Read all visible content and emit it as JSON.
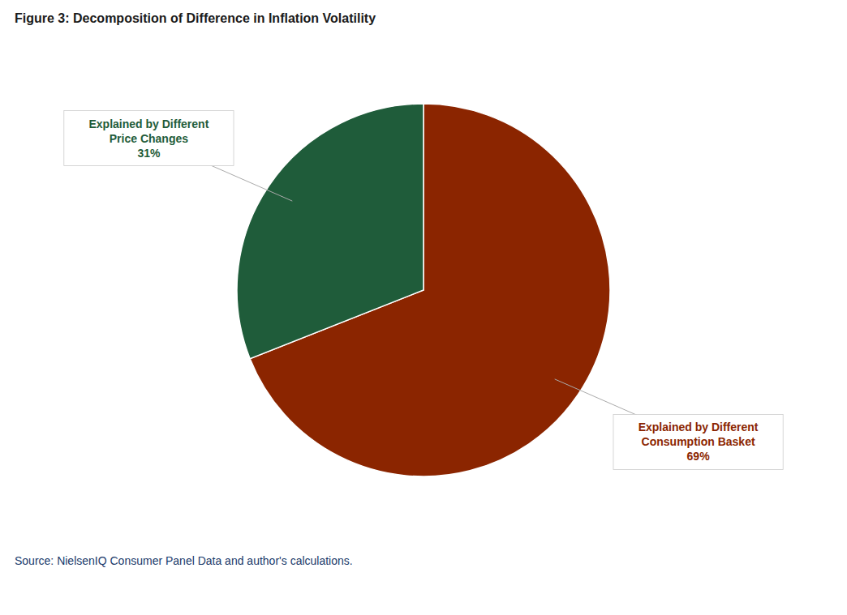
{
  "chart_data": {
    "type": "pie",
    "title": "Figure 3: Decomposition of Difference in Inflation Volatility",
    "values": [
      69,
      31
    ],
    "colors": [
      "#8B2500",
      "#1F5C3A"
    ],
    "annotations": [
      "Explained by Different\nConsumption Basket\n69%",
      "Explained by Different\nPrice Changes\n31%"
    ],
    "source": "Source: NielsenIQ Consumer Panel Data and author's calculations."
  }
}
